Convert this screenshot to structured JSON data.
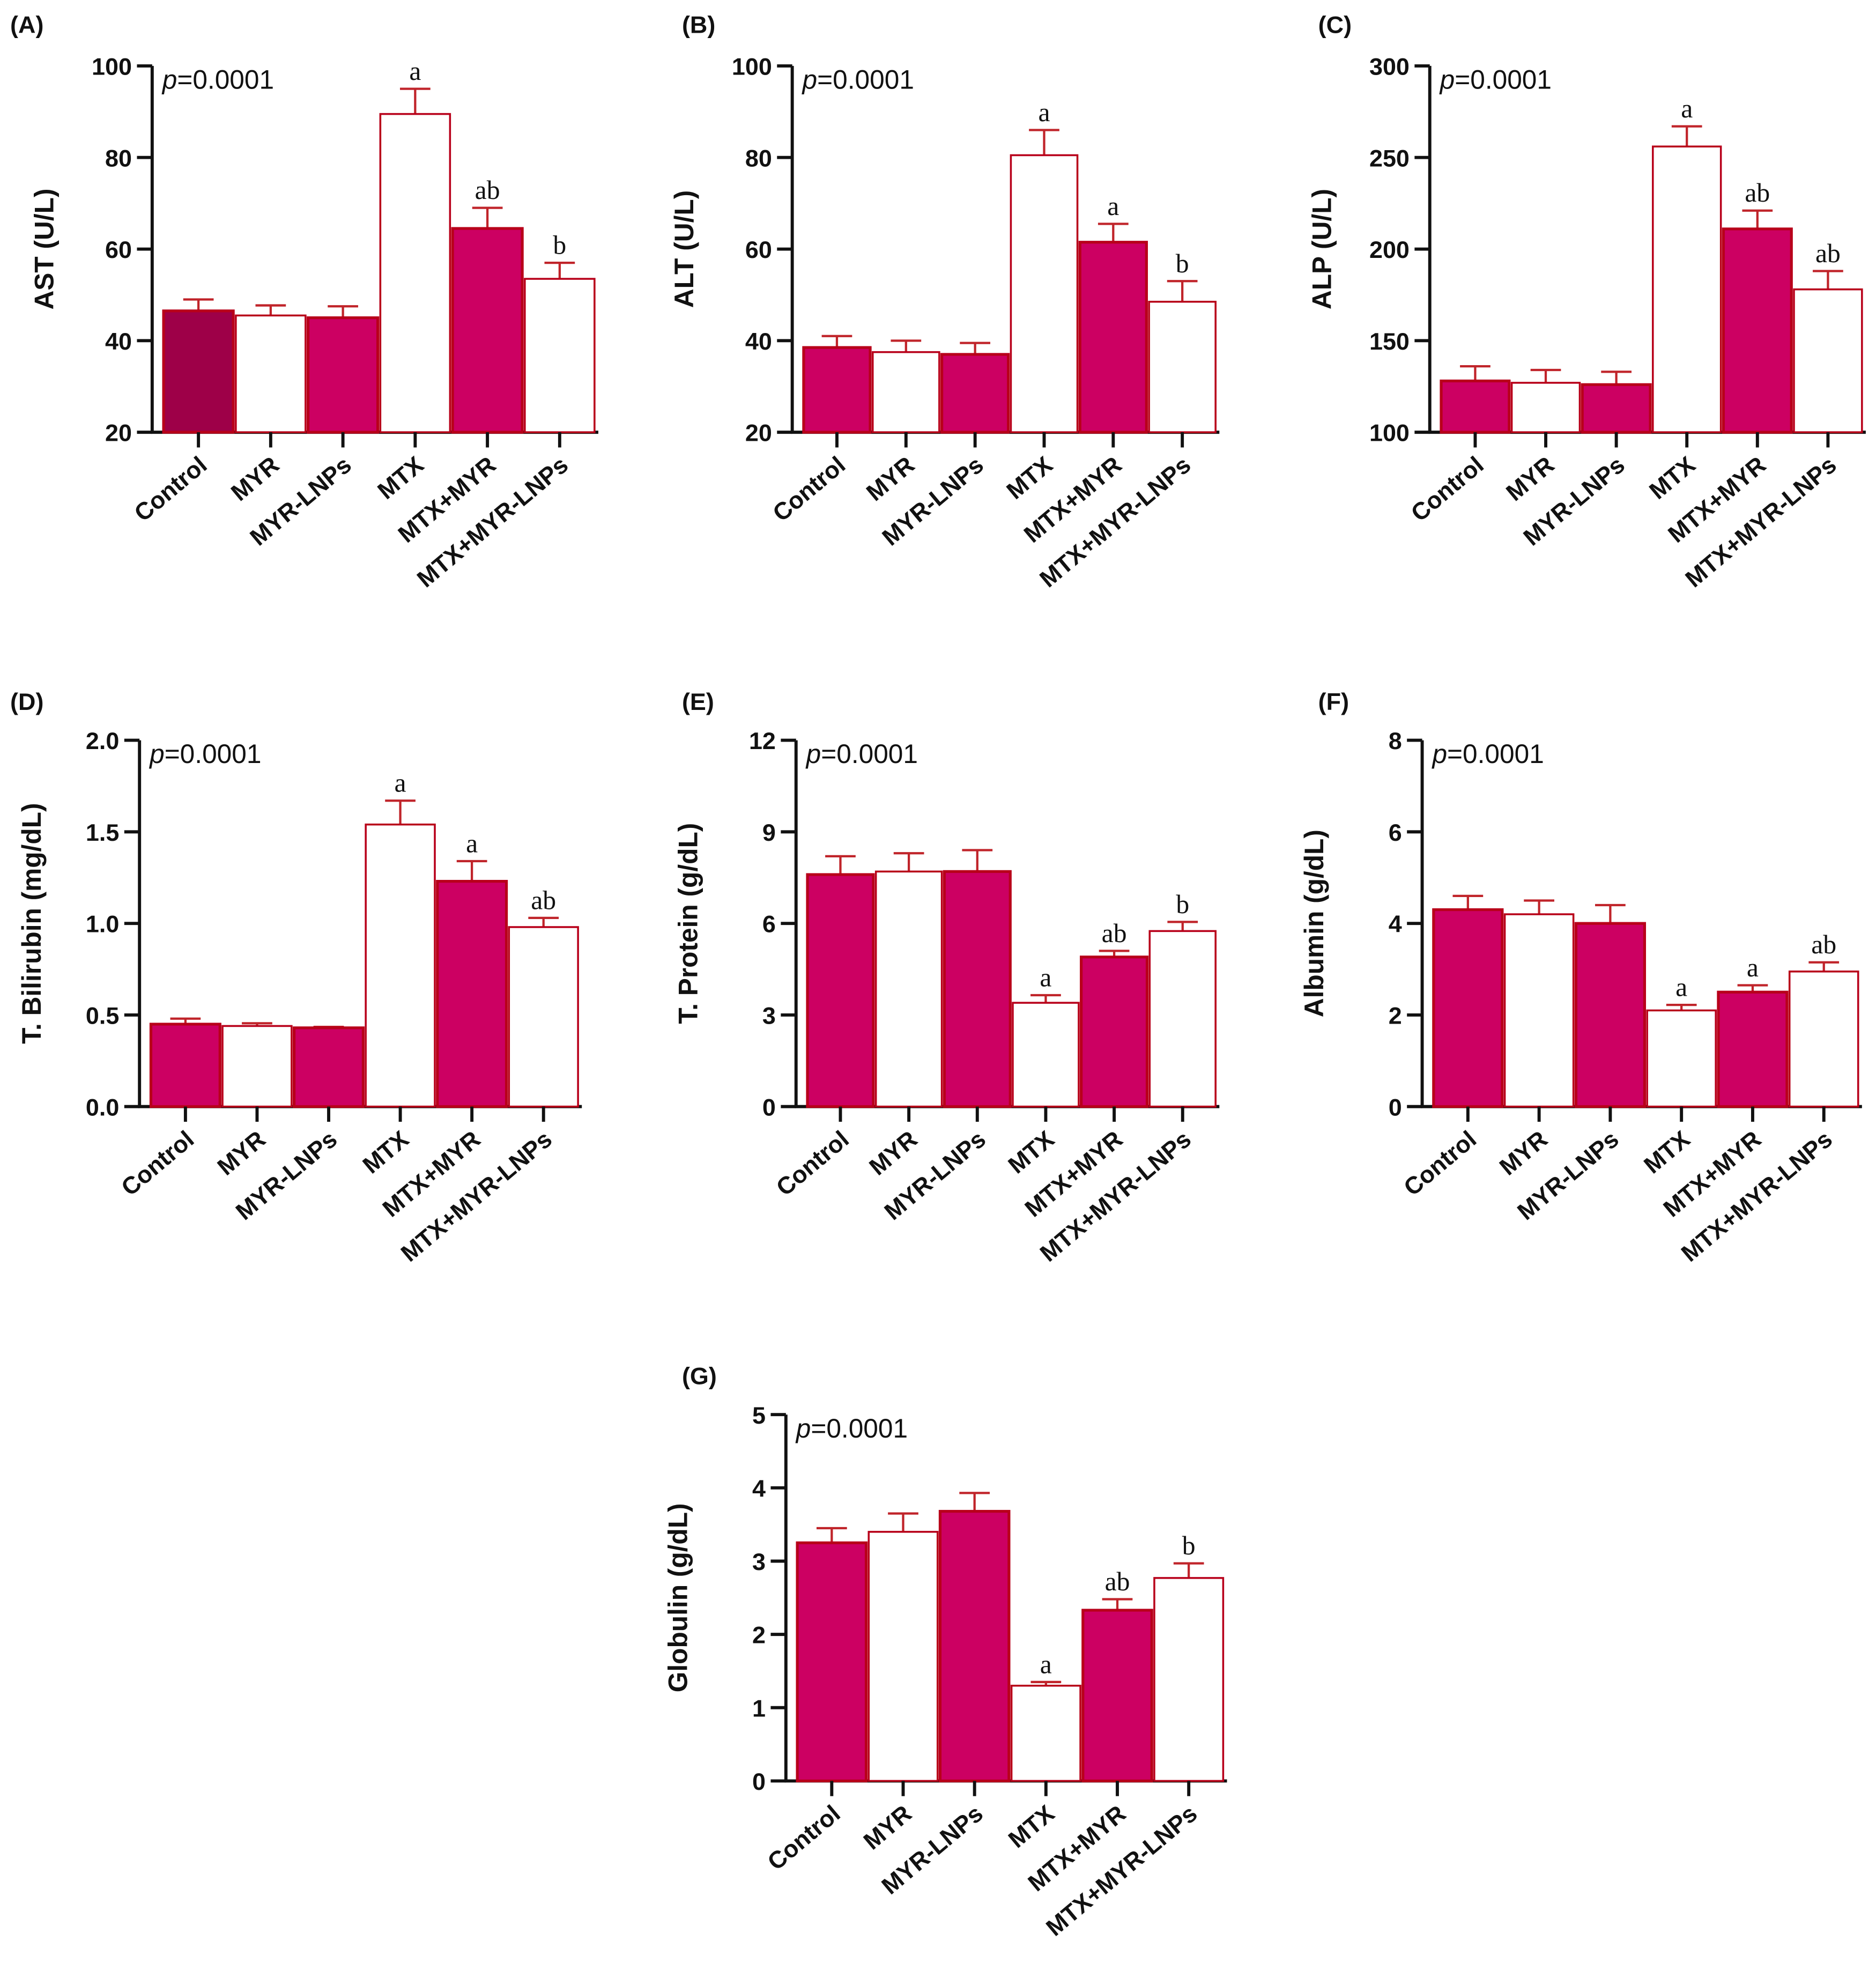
{
  "p_value_label": {
    "p": "p",
    "rest": "=0.0001"
  },
  "categories": [
    "Control",
    "MYR",
    "MYR-LNPs",
    "MTX",
    "MTX+MYR",
    "MTX+MYR-LNPs"
  ],
  "colors": {
    "filled": "#cc0062",
    "control_A": "#9e0048",
    "stroke": "#b8001a",
    "error": "#c0242a",
    "axis": "#111111"
  },
  "chart_data": [
    {
      "panel": "(A)",
      "type": "bar",
      "ylabel": "AST (U/L)",
      "ylim": [
        20,
        100
      ],
      "yticks": [
        20,
        40,
        60,
        80,
        100
      ],
      "tick_labels": [
        "20",
        "40",
        "60",
        "80",
        "100"
      ],
      "values": [
        46.5,
        45.5,
        45,
        89.5,
        64.5,
        53.5
      ],
      "errors": [
        2.5,
        2.2,
        2.5,
        5.5,
        4.5,
        3.5
      ],
      "letters": [
        "",
        "",
        "",
        "a",
        "ab",
        "b"
      ]
    },
    {
      "panel": "(B)",
      "type": "bar",
      "ylabel": "ALT (U/L)",
      "ylim": [
        20,
        100
      ],
      "yticks": [
        20,
        40,
        60,
        80,
        100
      ],
      "tick_labels": [
        "20",
        "40",
        "60",
        "80",
        "100"
      ],
      "values": [
        38.5,
        37.5,
        37,
        80.5,
        61.5,
        48.5
      ],
      "errors": [
        2.5,
        2.5,
        2.5,
        5.5,
        4,
        4.5
      ],
      "letters": [
        "",
        "",
        "",
        "a",
        "a",
        "b"
      ]
    },
    {
      "panel": "(C)",
      "type": "bar",
      "ylabel": "ALP (U/L)",
      "ylim": [
        100,
        300
      ],
      "yticks": [
        100,
        150,
        200,
        250,
        300
      ],
      "tick_labels": [
        "100",
        "150",
        "200",
        "250",
        "300"
      ],
      "values": [
        128,
        127,
        126,
        256,
        211,
        178
      ],
      "errors": [
        8,
        7,
        7,
        11,
        10,
        10
      ],
      "letters": [
        "",
        "",
        "",
        "a",
        "ab",
        "ab"
      ]
    },
    {
      "panel": "(D)",
      "type": "bar",
      "ylabel": "T. Bilirubin (mg/dL)",
      "ylim": [
        0,
        2
      ],
      "yticks": [
        0,
        0.5,
        1,
        1.5,
        2
      ],
      "tick_labels": [
        "0.0",
        "0.5",
        "1.0",
        "1.5",
        "2.0"
      ],
      "values": [
        0.45,
        0.44,
        0.43,
        1.54,
        1.23,
        0.98
      ],
      "errors": [
        0.03,
        0.015,
        0.005,
        0.13,
        0.11,
        0.05
      ],
      "letters": [
        "",
        "",
        "",
        "a",
        "a",
        "ab"
      ]
    },
    {
      "panel": "(E)",
      "type": "bar",
      "ylabel": "T. Protein (g/dL)",
      "ylim": [
        0,
        12
      ],
      "yticks": [
        0,
        3,
        6,
        9,
        12
      ],
      "tick_labels": [
        "0",
        "3",
        "6",
        "9",
        "12"
      ],
      "values": [
        7.6,
        7.7,
        7.7,
        3.4,
        4.9,
        5.75
      ],
      "errors": [
        0.6,
        0.6,
        0.7,
        0.25,
        0.2,
        0.3
      ],
      "letters": [
        "",
        "",
        "",
        "a",
        "ab",
        "b"
      ]
    },
    {
      "panel": "(F)",
      "type": "bar",
      "ylabel": "Albumin (g/dL)",
      "ylim": [
        0,
        8
      ],
      "yticks": [
        0,
        2,
        4,
        6,
        8
      ],
      "tick_labels": [
        "0",
        "2",
        "4",
        "6",
        "8"
      ],
      "values": [
        4.3,
        4.2,
        4.0,
        2.1,
        2.5,
        2.95
      ],
      "errors": [
        0.3,
        0.3,
        0.4,
        0.12,
        0.15,
        0.2
      ],
      "letters": [
        "",
        "",
        "",
        "a",
        "a",
        "ab"
      ]
    },
    {
      "panel": "(G)",
      "type": "bar",
      "ylabel": "Globulin (g/dL)",
      "ylim": [
        0,
        5
      ],
      "yticks": [
        0,
        1,
        2,
        3,
        4,
        5
      ],
      "tick_labels": [
        "0",
        "1",
        "2",
        "3",
        "4",
        "5"
      ],
      "values": [
        3.25,
        3.4,
        3.68,
        1.3,
        2.33,
        2.77
      ],
      "errors": [
        0.2,
        0.25,
        0.25,
        0.05,
        0.15,
        0.2
      ],
      "letters": [
        "",
        "",
        "",
        "a",
        "ab",
        "b"
      ]
    }
  ]
}
